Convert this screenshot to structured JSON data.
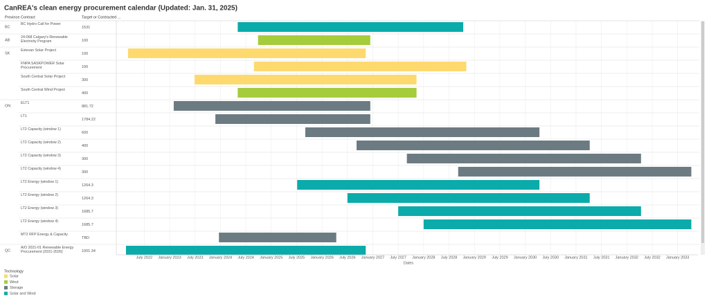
{
  "chart_data": {
    "type": "gantt",
    "title": "CanREA's clean energy procurement calendar (Updated: Jan. 31, 2025)",
    "columns": [
      "Province",
      "Contract",
      "Target or Contracted ..."
    ],
    "x_label": "Dates",
    "legend_title": "Technology",
    "series": [
      {
        "name": "Solar",
        "color": "#fdd96e"
      },
      {
        "name": "Wind",
        "color": "#a5cc3b"
      },
      {
        "name": "Storage",
        "color": "#6c7b81"
      },
      {
        "name": "Solar and Wind",
        "color": "#0aabaa"
      }
    ],
    "rows": [
      {
        "province": "BC",
        "contract": "BC Hydro Call for Power",
        "target": "1531",
        "series": 3,
        "start": 2024.34,
        "end": 2028.78
      },
      {
        "province": "AB",
        "contract": "24-068 Calgary's Renewable Electricity Program",
        "target": "100",
        "series": 1,
        "start": 2024.74,
        "end": 2026.95
      },
      {
        "province": "SK",
        "contract": "Estevan Solar Project",
        "target": "100",
        "series": 0,
        "start": 2022.18,
        "end": 2026.86
      },
      {
        "province": null,
        "contract": "FNPA SASKPOWER Solar Procurement",
        "target": "100",
        "series": 0,
        "start": 2024.66,
        "end": 2028.84
      },
      {
        "province": null,
        "contract": "South Central Solar Project",
        "target": "300",
        "series": 0,
        "start": 2023.49,
        "end": 2027.86
      },
      {
        "province": null,
        "contract": "South Central Wind Project",
        "target": "400",
        "series": 1,
        "start": 2024.34,
        "end": 2027.86
      },
      {
        "province": "ON",
        "contract": "ELT1",
        "target": "881.72",
        "series": 2,
        "start": 2023.08,
        "end": 2026.95
      },
      {
        "province": null,
        "contract": "LT1",
        "target": "1784.22",
        "series": 2,
        "start": 2023.9,
        "end": 2026.95
      },
      {
        "province": null,
        "contract": "LT2  Capacity (window 1)",
        "target": "600",
        "series": 2,
        "start": 2025.67,
        "end": 2030.28
      },
      {
        "province": null,
        "contract": "LT2  Capacity (window 2)",
        "target": "400",
        "series": 2,
        "start": 2026.68,
        "end": 2031.27
      },
      {
        "province": null,
        "contract": "LT2  Capacity (window 3)",
        "target": "300",
        "series": 2,
        "start": 2027.67,
        "end": 2032.28
      },
      {
        "province": null,
        "contract": "LT2  Capacity (window 4)",
        "target": "300",
        "series": 2,
        "start": 2028.68,
        "end": 2033.27
      },
      {
        "province": null,
        "contract": "LT2  Energy  (window 1)",
        "target": "1264.3",
        "series": 3,
        "start": 2025.51,
        "end": 2030.28
      },
      {
        "province": null,
        "contract": "LT2  Energy  (window 2)",
        "target": "1264.3",
        "series": 3,
        "start": 2026.5,
        "end": 2031.27
      },
      {
        "province": null,
        "contract": "LT2  Energy  (window 3)",
        "target": "1685.7",
        "series": 3,
        "start": 2027.5,
        "end": 2032.28
      },
      {
        "province": null,
        "contract": "LT2  Energy  (window 4)",
        "target": "1685.7",
        "series": 3,
        "start": 2028.0,
        "end": 2033.27
      },
      {
        "province": null,
        "contract": "MT2 RFP Energy & Capacity",
        "target": "TBD",
        "series": 2,
        "start": 2023.97,
        "end": 2026.28
      },
      {
        "province": "QC",
        "contract": "A/O 2021-01 Renewable Energy Procurement (2021-2026)",
        "target": "1001.34",
        "series": 3,
        "start": 2022.14,
        "end": 2026.86
      }
    ],
    "xlim": [
      2021.95,
      2033.4
    ],
    "xticks": [
      {
        "value": 2022.5,
        "label": "July 2022"
      },
      {
        "value": 2023,
        "label": "January 2023"
      },
      {
        "value": 2023.5,
        "label": "July 2023"
      },
      {
        "value": 2024,
        "label": "January 2024"
      },
      {
        "value": 2024.5,
        "label": "July 2024"
      },
      {
        "value": 2025,
        "label": "January 2025"
      },
      {
        "value": 2025.5,
        "label": "July 2025"
      },
      {
        "value": 2026,
        "label": "January 2026"
      },
      {
        "value": 2026.5,
        "label": "July 2026"
      },
      {
        "value": 2027,
        "label": "January 2027"
      },
      {
        "value": 2027.5,
        "label": "July 2027"
      },
      {
        "value": 2028,
        "label": "January 2028"
      },
      {
        "value": 2028.5,
        "label": "July 2028"
      },
      {
        "value": 2029,
        "label": "January 2029"
      },
      {
        "value": 2029.5,
        "label": "July 2029"
      },
      {
        "value": 2030,
        "label": "January 2030"
      },
      {
        "value": 2030.5,
        "label": "July 2030"
      },
      {
        "value": 2031,
        "label": "January 2031"
      },
      {
        "value": 2031.5,
        "label": "July 2031"
      },
      {
        "value": 2032,
        "label": "January 2032"
      },
      {
        "value": 2032.5,
        "label": "July 2032"
      },
      {
        "value": 2033,
        "label": "January 2033"
      }
    ],
    "grid": true
  }
}
